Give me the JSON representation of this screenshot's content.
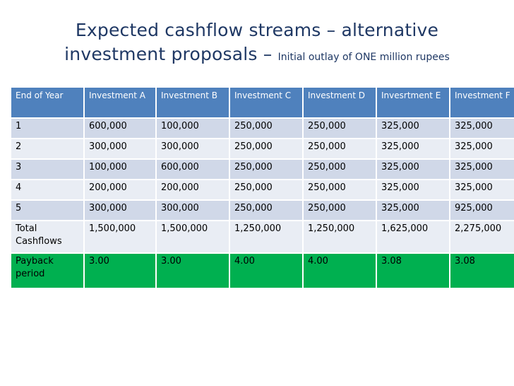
{
  "title": {
    "line1": "Expected cashflow streams – alternative",
    "line2": "investment proposals –",
    "subtitle": "Initial outlay of ONE million rupees"
  },
  "table": {
    "headers": [
      "End of Year",
      "Investment A",
      "Investment B",
      "Investment C",
      "Investment D",
      "Invesrtment E",
      "Investment F"
    ],
    "rows": [
      [
        "1",
        "600,000",
        "100,000",
        "250,000",
        "250,000",
        "325,000",
        "325,000"
      ],
      [
        "2",
        "300,000",
        "300,000",
        "250,000",
        "250,000",
        "325,000",
        "325,000"
      ],
      [
        "3",
        "100,000",
        "600,000",
        "250,000",
        "250,000",
        "325,000",
        "325,000"
      ],
      [
        "4",
        "200,000",
        "200,000",
        "250,000",
        "250,000",
        "325,000",
        "325,000"
      ],
      [
        "5",
        "300,000",
        "300,000",
        "250,000",
        "250,000",
        "325,000",
        "925,000"
      ],
      [
        "Total Cashflows",
        "1,500,000",
        "1,500,000",
        "1,250,000",
        "1,250,000",
        "1,625,000",
        "2,275,000"
      ],
      [
        "Payback period",
        "3.00",
        "3.00",
        "4.00",
        "4.00",
        "3.08",
        "3.08"
      ]
    ]
  },
  "colors": {
    "title": "#1f3864",
    "header_bg": "#4f81bd",
    "row_odd_bg": "#d0d8e8",
    "row_even_bg": "#e9edf4",
    "payback_bg": "#00b050"
  }
}
